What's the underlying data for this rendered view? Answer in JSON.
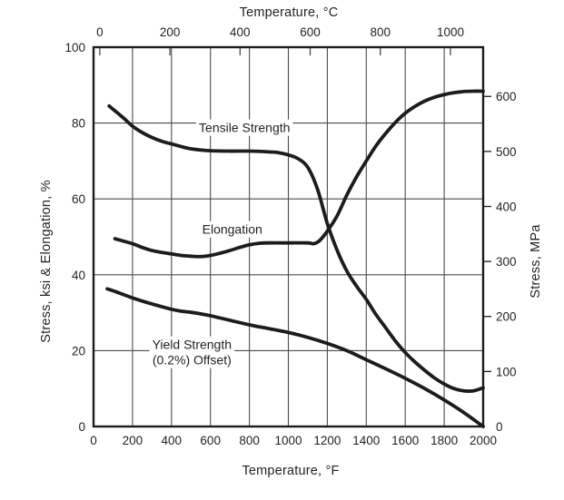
{
  "chart_data": {
    "type": "line",
    "title": "",
    "grid": {
      "vertical_every_F": 200,
      "horizontal_every_pct": 20,
      "grid_on": true
    },
    "axes": {
      "bottom": {
        "label": "Temperature, °F",
        "min": 0,
        "max": 2000,
        "ticks": [
          0,
          200,
          400,
          600,
          800,
          1000,
          1200,
          1400,
          1600,
          1800,
          2000
        ]
      },
      "top": {
        "label": "Temperature, °C",
        "ticks": [
          0,
          200,
          400,
          600,
          800,
          1000
        ],
        "note": "tick positions follow F = C*9/5 + 32"
      },
      "left": {
        "label": "Stress, ksi & Elongation, %",
        "min": 0,
        "max": 100,
        "ticks": [
          0,
          20,
          40,
          60,
          80,
          100
        ]
      },
      "right": {
        "label": "Stress, MPa",
        "ticks": [
          0,
          100,
          200,
          300,
          400,
          500,
          600
        ],
        "note": "tick positions follow ksi = MPa * 0.1450377"
      }
    },
    "series": [
      {
        "name": "Tensile Strength",
        "label": {
          "lines": [
            "Tensile Strength"
          ],
          "anchor_f": 775,
          "anchor_v": 77.6
        },
        "points_f_v": [
          [
            80,
            84.5
          ],
          [
            150,
            81.5
          ],
          [
            200,
            79.2
          ],
          [
            250,
            77.5
          ],
          [
            300,
            76.2
          ],
          [
            350,
            75.2
          ],
          [
            400,
            74.5
          ],
          [
            450,
            73.8
          ],
          [
            500,
            73.2
          ],
          [
            550,
            72.9
          ],
          [
            600,
            72.7
          ],
          [
            700,
            72.6
          ],
          [
            800,
            72.6
          ],
          [
            900,
            72.4
          ],
          [
            950,
            72.2
          ],
          [
            1000,
            71.6
          ],
          [
            1050,
            70.6
          ],
          [
            1100,
            68.3
          ],
          [
            1150,
            62.5
          ],
          [
            1200,
            53.5
          ],
          [
            1250,
            46.5
          ],
          [
            1300,
            41.0
          ],
          [
            1350,
            37.0
          ],
          [
            1400,
            33.5
          ],
          [
            1450,
            29.5
          ],
          [
            1500,
            26.0
          ],
          [
            1550,
            22.5
          ],
          [
            1600,
            19.5
          ],
          [
            1650,
            17.0
          ],
          [
            1700,
            14.8
          ],
          [
            1750,
            12.8
          ],
          [
            1800,
            11.2
          ],
          [
            1850,
            10.0
          ],
          [
            1900,
            9.4
          ],
          [
            1950,
            9.4
          ],
          [
            2000,
            10.2
          ]
        ]
      },
      {
        "name": "Elongation",
        "label": {
          "lines": [
            "Elongation"
          ],
          "anchor_f": 712,
          "anchor_v": 50.8
        },
        "points_f_v": [
          [
            110,
            49.5
          ],
          [
            200,
            48.2
          ],
          [
            250,
            47.2
          ],
          [
            300,
            46.4
          ],
          [
            350,
            45.9
          ],
          [
            400,
            45.5
          ],
          [
            450,
            45.1
          ],
          [
            500,
            44.9
          ],
          [
            550,
            44.8
          ],
          [
            600,
            45.1
          ],
          [
            650,
            45.7
          ],
          [
            700,
            46.4
          ],
          [
            750,
            47.2
          ],
          [
            800,
            47.9
          ],
          [
            850,
            48.3
          ],
          [
            900,
            48.4
          ],
          [
            1000,
            48.4
          ],
          [
            1100,
            48.4
          ],
          [
            1130,
            48.2
          ],
          [
            1160,
            49.0
          ],
          [
            1200,
            51.5
          ],
          [
            1250,
            55.5
          ],
          [
            1300,
            61.0
          ],
          [
            1350,
            65.8
          ],
          [
            1400,
            70.0
          ],
          [
            1450,
            74.0
          ],
          [
            1500,
            77.3
          ],
          [
            1550,
            80.2
          ],
          [
            1600,
            82.6
          ],
          [
            1650,
            84.4
          ],
          [
            1700,
            85.8
          ],
          [
            1750,
            86.8
          ],
          [
            1800,
            87.5
          ],
          [
            1850,
            88.0
          ],
          [
            1900,
            88.3
          ],
          [
            1950,
            88.4
          ],
          [
            2000,
            88.4
          ]
        ]
      },
      {
        "name": "Yield Strength (0.2%) Offset)",
        "label": {
          "lines": [
            "Yield Strength",
            "(0.2%) Offset)"
          ],
          "anchor_f": 505,
          "anchor_v": 20.4
        },
        "points_f_v": [
          [
            70,
            36.3
          ],
          [
            100,
            35.8
          ],
          [
            200,
            33.9
          ],
          [
            300,
            32.3
          ],
          [
            400,
            30.9
          ],
          [
            450,
            30.4
          ],
          [
            500,
            30.1
          ],
          [
            550,
            29.7
          ],
          [
            600,
            29.2
          ],
          [
            650,
            28.6
          ],
          [
            700,
            28.0
          ],
          [
            800,
            26.8
          ],
          [
            900,
            25.8
          ],
          [
            1000,
            24.8
          ],
          [
            1100,
            23.5
          ],
          [
            1200,
            21.9
          ],
          [
            1300,
            20.0
          ],
          [
            1400,
            17.6
          ],
          [
            1500,
            15.2
          ],
          [
            1600,
            12.7
          ],
          [
            1700,
            10.0
          ],
          [
            1800,
            7.0
          ],
          [
            1900,
            3.7
          ],
          [
            2000,
            0.0
          ]
        ]
      }
    ],
    "colors": {
      "curve": "#1c1c1c",
      "grid": "#4d4d4d",
      "frame": "#1c1c1c",
      "text": "#231f20",
      "background": "#ffffff"
    }
  }
}
